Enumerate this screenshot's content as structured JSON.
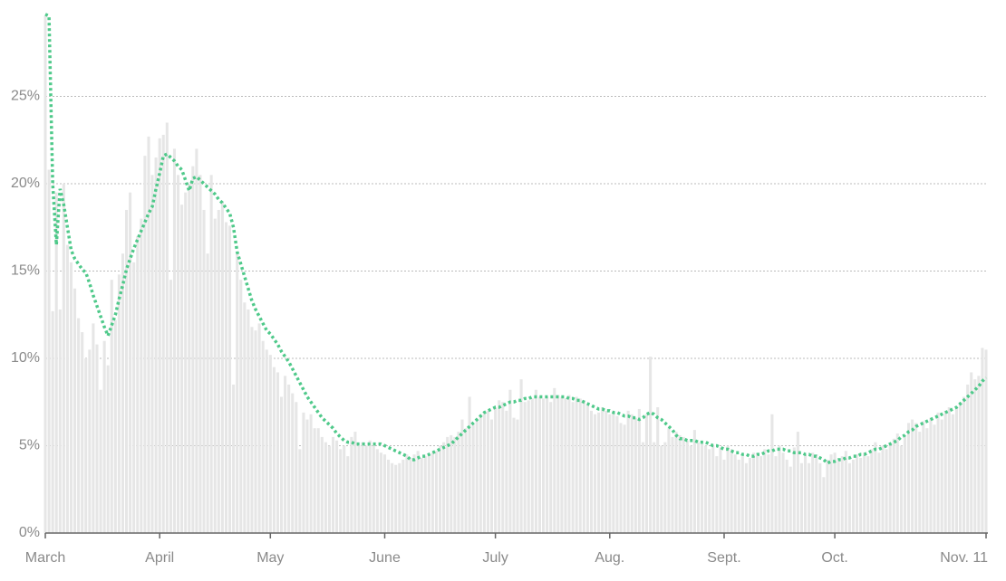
{
  "chart_data": {
    "type": "combo",
    "categories": [
      "March",
      null,
      null,
      null,
      null,
      null,
      null,
      null,
      null,
      null,
      null,
      null,
      null,
      null,
      null,
      null,
      null,
      null,
      null,
      null,
      null,
      null,
      null,
      null,
      null,
      null,
      null,
      null,
      null,
      null,
      null,
      "April",
      null,
      null,
      null,
      null,
      null,
      null,
      null,
      null,
      null,
      null,
      null,
      null,
      null,
      null,
      null,
      null,
      null,
      null,
      null,
      null,
      null,
      null,
      null,
      null,
      null,
      null,
      null,
      null,
      null,
      "May",
      null,
      null,
      null,
      null,
      null,
      null,
      null,
      null,
      null,
      null,
      null,
      null,
      null,
      null,
      null,
      null,
      null,
      null,
      null,
      null,
      null,
      null,
      null,
      null,
      null,
      null,
      null,
      null,
      null,
      null,
      "June",
      null,
      null,
      null,
      null,
      null,
      null,
      null,
      null,
      null,
      null,
      null,
      null,
      null,
      null,
      null,
      null,
      null,
      null,
      null,
      null,
      null,
      null,
      null,
      null,
      null,
      null,
      null,
      null,
      null,
      "July",
      null,
      null,
      null,
      null,
      null,
      null,
      null,
      null,
      null,
      null,
      null,
      null,
      null,
      null,
      null,
      null,
      null,
      null,
      null,
      null,
      null,
      null,
      null,
      null,
      null,
      null,
      null,
      null,
      null,
      null,
      "Aug.",
      null,
      null,
      null,
      null,
      null,
      null,
      null,
      null,
      null,
      null,
      null,
      null,
      null,
      null,
      null,
      null,
      null,
      null,
      null,
      null,
      null,
      null,
      null,
      null,
      null,
      null,
      null,
      null,
      null,
      null,
      "Sept.",
      null,
      null,
      null,
      null,
      null,
      null,
      null,
      null,
      null,
      null,
      null,
      null,
      null,
      null,
      null,
      null,
      null,
      null,
      null,
      null,
      null,
      null,
      null,
      null,
      null,
      null,
      null,
      null,
      null,
      "Oct.",
      null,
      null,
      null,
      null,
      null,
      null,
      null,
      null,
      null,
      null,
      null,
      null,
      null,
      null,
      null,
      null,
      null,
      null,
      null,
      null,
      null,
      null,
      null,
      null,
      null,
      null,
      null,
      null,
      null,
      null,
      null,
      null,
      null,
      null,
      null,
      null,
      null,
      null,
      null,
      null,
      "Nov. 11"
    ],
    "series": [
      {
        "type": "bar",
        "color": "#e6e6e6",
        "values": [
          29.6,
          20.8,
          12.7,
          19.5,
          12.8,
          20,
          16.5,
          15.5,
          14,
          12.3,
          11.5,
          10,
          10.5,
          12,
          10.8,
          8.2,
          11,
          9.6,
          14.5,
          12.2,
          14.8,
          16,
          18.5,
          19.5,
          15.5,
          17,
          18,
          21.6,
          22.7,
          20.5,
          21.5,
          22.6,
          22.8,
          23.5,
          14.5,
          22,
          20.5,
          18.8,
          19.5,
          20,
          21,
          22,
          20.5,
          18.5,
          16,
          20.5,
          18,
          18.5,
          19,
          17.8,
          17.6,
          8.5,
          16,
          14.5,
          13.2,
          12.8,
          11.8,
          11.6,
          12,
          11,
          10.5,
          10.2,
          9.5,
          9.2,
          7.8,
          9,
          8.5,
          8,
          7.5,
          4.8,
          6.9,
          6.5,
          6.8,
          6,
          6,
          5.5,
          5.2,
          5,
          5.5,
          5.3,
          4.8,
          5,
          4.4,
          5.5,
          5.8,
          5,
          5.2,
          5,
          5.3,
          5,
          4.8,
          4.6,
          4.5,
          4.2,
          4,
          3.9,
          4,
          4.2,
          4.5,
          4.3,
          4.5,
          4.7,
          4.3,
          4.4,
          4.5,
          4.6,
          4.7,
          5,
          5.2,
          5.5,
          5.6,
          5.5,
          5.8,
          6.5,
          6,
          7.8,
          6.2,
          6.5,
          6.8,
          6.9,
          7,
          6.5,
          7.2,
          7.6,
          7.5,
          7,
          8.2,
          6.6,
          6.5,
          8.8,
          7.5,
          7.6,
          7.7,
          8.2,
          7.8,
          7.7,
          7.8,
          7.5,
          8.3,
          7.9,
          7.8,
          7.7,
          7.9,
          7.5,
          7.8,
          7.7,
          7.6,
          7.3,
          7,
          6.8,
          6.9,
          7.2,
          7,
          6.8,
          7,
          6.7,
          6.3,
          6.2,
          7,
          6.8,
          6.6,
          7.1,
          5.2,
          6.8,
          10.1,
          5.2,
          7.2,
          5,
          5.2,
          6,
          5.5,
          5.8,
          5.6,
          5.5,
          5.3,
          5,
          5.9,
          5.2,
          5.1,
          5,
          4.8,
          5,
          4.4,
          4.9,
          4.2,
          5,
          4.8,
          4.5,
          4.2,
          4.4,
          4,
          4.3,
          4.6,
          4.5,
          4.4,
          4.8,
          4.5,
          6.8,
          4.4,
          5,
          4.6,
          4.2,
          3.8,
          4.9,
          5.8,
          4,
          4.5,
          4,
          4.6,
          4.5,
          4,
          3.2,
          4.2,
          4.5,
          4.6,
          4.2,
          4.4,
          4.7,
          4,
          4.2,
          4.5,
          4.3,
          4.6,
          4.4,
          4.8,
          5.2,
          4.6,
          5,
          4.8,
          5,
          5.4,
          5.7,
          5,
          5.5,
          6.3,
          6.5,
          6.3,
          5.8,
          6.4,
          6,
          6.6,
          6.2,
          6.9,
          6.5,
          7,
          7.2,
          6.8,
          7.2,
          7.5,
          7.8,
          8.5,
          9.2,
          8.8,
          9,
          10.6,
          10.5
        ]
      },
      {
        "type": "line",
        "color": "#4fc98a",
        "values": [
          29.7,
          29.6,
          20,
          16.5,
          19.7,
          18.8,
          17.5,
          16.2,
          15.7,
          15.4,
          15.1,
          14.9,
          14.3,
          13.6,
          13,
          12.4,
          11.8,
          11.3,
          11.9,
          12.5,
          13.4,
          14.2,
          15.1,
          15.7,
          16.3,
          16.8,
          17.3,
          17.8,
          18.3,
          18.7,
          19.7,
          20.6,
          21.6,
          21.7,
          21.5,
          21.3,
          21,
          20.8,
          20.2,
          19.6,
          20.3,
          20.4,
          20.2,
          20,
          19.8,
          19.6,
          19.4,
          19.1,
          18.9,
          18.6,
          18.3,
          17.5,
          16.1,
          15.4,
          14.7,
          14,
          13.3,
          12.8,
          12.4,
          12,
          11.6,
          11.4,
          11.1,
          10.8,
          10.4,
          10.1,
          9.8,
          9.4,
          9,
          8.6,
          8.2,
          7.8,
          7.5,
          7.2,
          6.9,
          6.6,
          6.4,
          6.2,
          6,
          5.7,
          5.5,
          5.3,
          5.2,
          5.2,
          5.1,
          5.1,
          5.1,
          5.1,
          5.1,
          5.1,
          5.1,
          5.1,
          5,
          4.9,
          4.8,
          4.7,
          4.6,
          4.5,
          4.4,
          4.2,
          4.2,
          4.3,
          4.4,
          4.4,
          4.5,
          4.6,
          4.7,
          4.8,
          4.9,
          5,
          5.1,
          5.3,
          5.5,
          5.7,
          5.9,
          6.1,
          6.3,
          6.5,
          6.7,
          6.9,
          7,
          7.1,
          7.2,
          7.2,
          7.3,
          7.4,
          7.5,
          7.5,
          7.6,
          7.6,
          7.7,
          7.7,
          7.8,
          7.8,
          7.8,
          7.8,
          7.8,
          7.8,
          7.8,
          7.8,
          7.8,
          7.8,
          7.7,
          7.7,
          7.6,
          7.6,
          7.5,
          7.4,
          7.3,
          7.2,
          7.1,
          7.1,
          7,
          7,
          6.9,
          6.9,
          6.8,
          6.7,
          6.7,
          6.6,
          6.6,
          6.5,
          6.6,
          6.8,
          6.9,
          6.8,
          6.6,
          6.5,
          6.3,
          6.1,
          5.9,
          5.6,
          5.4,
          5.4,
          5.3,
          5.3,
          5.3,
          5.2,
          5.2,
          5.2,
          5.1,
          5,
          5,
          4.9,
          4.8,
          4.8,
          4.7,
          4.6,
          4.6,
          4.5,
          4.5,
          4.4,
          4.4,
          4.5,
          4.5,
          4.6,
          4.7,
          4.7,
          4.8,
          4.8,
          4.8,
          4.7,
          4.7,
          4.6,
          4.6,
          4.6,
          4.5,
          4.5,
          4.4,
          4.4,
          4.3,
          4.2,
          4,
          4.1,
          4.1,
          4.2,
          4.2,
          4.3,
          4.3,
          4.4,
          4.4,
          4.5,
          4.5,
          4.6,
          4.7,
          4.8,
          4.8,
          4.9,
          5,
          5.1,
          5.2,
          5.3,
          5.5,
          5.6,
          5.8,
          5.9,
          6.1,
          6.2,
          6.3,
          6.4,
          6.5,
          6.6,
          6.7,
          6.8,
          6.9,
          7,
          7.1,
          7.2,
          7.4,
          7.6,
          7.8,
          8,
          8.2,
          8.4,
          8.7,
          8.9
        ]
      }
    ],
    "ylim": [
      0,
      30
    ],
    "yticks": [
      {
        "value": 0,
        "label": "0%"
      },
      {
        "value": 5,
        "label": "5%"
      },
      {
        "value": 10,
        "label": "10%"
      },
      {
        "value": 15,
        "label": "15%"
      },
      {
        "value": 20,
        "label": "20%"
      },
      {
        "value": 25,
        "label": "25%"
      }
    ],
    "grid": true
  }
}
